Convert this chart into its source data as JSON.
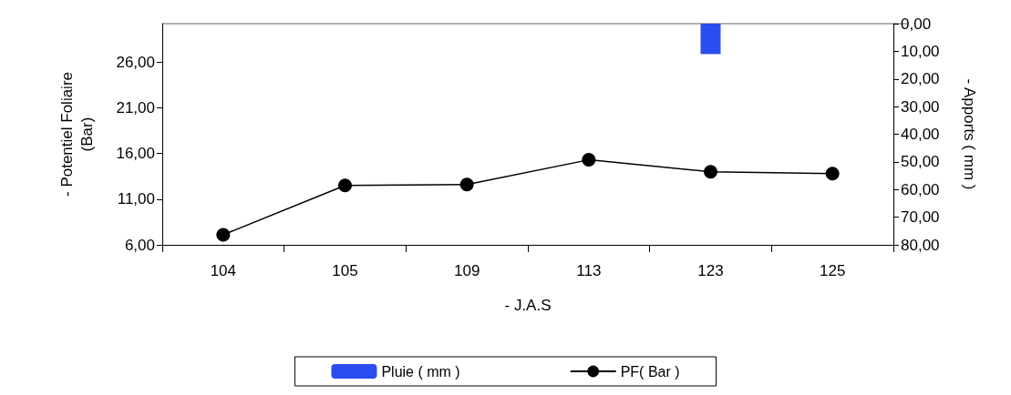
{
  "chart_data": {
    "type": "line",
    "xlabel": "- J.A.S",
    "ylabel": "- Potentiel Foliaire\n(Bar)",
    "y2label": "- Apports ( mm )",
    "categories": [
      "104",
      "105",
      "109",
      "113",
      "123",
      "125"
    ],
    "series": [
      {
        "name": "Pluie ( mm )",
        "type": "bar",
        "axis": "y2",
        "color": "#2b4cf0",
        "values": [
          null,
          null,
          null,
          null,
          11,
          null
        ]
      },
      {
        "name": "PF( Bar )",
        "color": "#000000",
        "marker": "circle",
        "values": [
          7.1,
          12.5,
          12.6,
          15.3,
          14.0,
          13.8
        ]
      }
    ],
    "ylim": [
      6,
      30.2
    ],
    "yticks": [
      {
        "value": 6,
        "label": "6,00"
      },
      {
        "value": 11,
        "label": "11,00"
      },
      {
        "value": 16,
        "label": "16,00"
      },
      {
        "value": 21,
        "label": "21,00"
      },
      {
        "value": 26,
        "label": "26,00"
      }
    ],
    "y2lim": [
      80,
      0
    ],
    "y2ticks": [
      {
        "value": 0,
        "label": "0,00"
      },
      {
        "value": 10,
        "label": "10,00"
      },
      {
        "value": 20,
        "label": "20,00"
      },
      {
        "value": 30,
        "label": "30,00"
      },
      {
        "value": 40,
        "label": "40,00"
      },
      {
        "value": 50,
        "label": "50,00"
      },
      {
        "value": 60,
        "label": "60,00"
      },
      {
        "value": 70,
        "label": "70,00"
      },
      {
        "value": 80,
        "label": "80,00"
      }
    ],
    "grid": false,
    "legend": "bottom"
  }
}
